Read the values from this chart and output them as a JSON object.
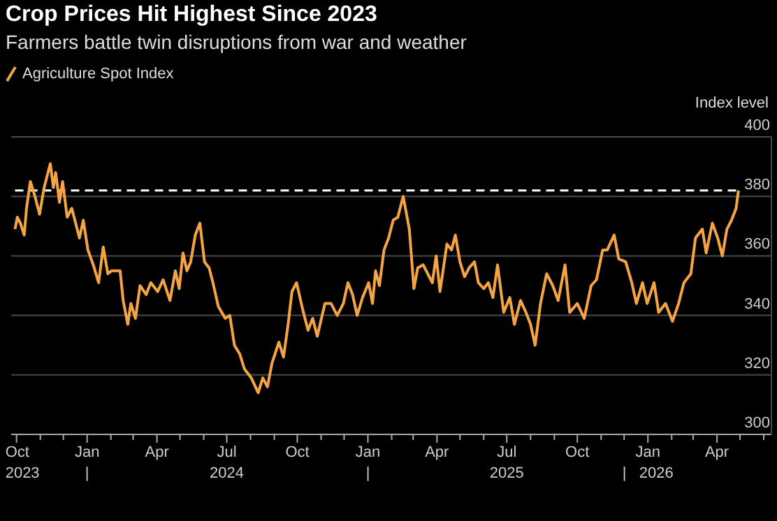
{
  "chart_data": {
    "type": "line",
    "title": "Crop Prices Hit Highest Since 2023",
    "subtitle": "Farmers battle twin disruptions from war and weather",
    "ylabel": "Index level",
    "x": [
      "2023-09-29",
      "2023-10-02",
      "2023-10-06",
      "2023-10-11",
      "2023-10-14",
      "2023-10-19",
      "2023-10-25",
      "2023-10-31",
      "2023-11-06",
      "2023-11-14",
      "2023-11-18",
      "2023-11-21",
      "2023-11-26",
      "2023-11-30",
      "2023-12-06",
      "2023-12-12",
      "2023-12-18",
      "2023-12-22",
      "2023-12-27",
      "2024-01-02",
      "2024-01-09",
      "2024-01-16",
      "2024-01-22",
      "2024-01-28",
      "2024-02-02",
      "2024-02-13",
      "2024-02-17",
      "2024-02-23",
      "2024-02-27",
      "2024-03-04",
      "2024-03-10",
      "2024-03-18",
      "2024-03-24",
      "2024-04-02",
      "2024-04-09",
      "2024-04-18",
      "2024-04-25",
      "2024-04-30",
      "2024-05-05",
      "2024-05-10",
      "2024-05-15",
      "2024-05-21",
      "2024-05-27",
      "2024-06-02",
      "2024-06-08",
      "2024-06-13",
      "2024-06-20",
      "2024-06-29",
      "2024-07-05",
      "2024-07-11",
      "2024-07-18",
      "2024-07-24",
      "2024-08-02",
      "2024-08-11",
      "2024-08-17",
      "2024-08-23",
      "2024-08-29",
      "2024-09-07",
      "2024-09-13",
      "2024-09-19",
      "2024-09-24",
      "2024-09-30",
      "2024-10-08",
      "2024-10-15",
      "2024-10-21",
      "2024-10-27",
      "2024-11-06",
      "2024-11-14",
      "2024-11-22",
      "2024-11-30",
      "2024-12-06",
      "2024-12-12",
      "2024-12-18",
      "2024-12-25",
      "2025-01-02",
      "2025-01-07",
      "2025-01-11",
      "2025-01-16",
      "2025-01-22",
      "2025-01-28",
      "2025-02-03",
      "2025-02-09",
      "2025-02-16",
      "2025-02-24",
      "2025-03-02",
      "2025-03-07",
      "2025-03-14",
      "2025-03-20",
      "2025-03-26",
      "2025-03-31",
      "2025-04-05",
      "2025-04-14",
      "2025-04-20",
      "2025-04-25",
      "2025-05-01",
      "2025-05-07",
      "2025-05-13",
      "2025-05-20",
      "2025-05-25",
      "2025-06-01",
      "2025-06-07",
      "2025-06-13",
      "2025-06-19",
      "2025-06-27",
      "2025-07-05",
      "2025-07-11",
      "2025-07-19",
      "2025-07-26",
      "2025-08-01",
      "2025-08-07",
      "2025-08-14",
      "2025-08-22",
      "2025-08-30",
      "2025-09-06",
      "2025-09-15",
      "2025-09-21",
      "2025-10-01",
      "2025-10-10",
      "2025-10-19",
      "2025-10-26",
      "2025-11-03",
      "2025-11-09",
      "2025-11-18",
      "2025-11-24",
      "2025-12-03",
      "2025-12-11",
      "2025-12-17",
      "2025-12-25",
      "2025-12-31",
      "2026-01-09",
      "2026-01-15",
      "2026-01-24",
      "2026-02-02",
      "2026-02-10",
      "2026-02-17",
      "2026-02-26",
      "2026-03-04",
      "2026-03-13",
      "2026-03-18",
      "2026-03-26",
      "2026-04-02",
      "2026-04-08",
      "2026-04-14",
      "2026-04-20",
      "2026-04-26",
      "2026-04-29"
    ],
    "series": [
      {
        "name": "Agriculture Spot Index",
        "color": "#f5a443",
        "values": [
          369,
          373,
          371,
          367,
          376,
          385,
          380,
          374,
          383,
          391,
          383,
          388,
          378,
          385,
          373,
          376,
          370,
          366,
          372,
          362,
          357,
          351,
          363,
          354,
          355,
          355,
          345,
          337,
          344,
          339,
          350,
          347,
          351,
          348,
          352,
          345,
          355,
          349,
          361,
          355,
          358,
          367,
          371,
          358,
          356,
          351,
          343,
          339,
          340,
          330,
          327,
          322,
          319,
          314,
          319,
          316,
          324,
          331,
          326,
          337,
          348,
          351,
          342,
          335,
          339,
          333,
          344,
          344,
          340,
          344,
          351,
          347,
          340,
          346,
          351,
          344,
          355,
          350,
          362,
          366,
          372,
          373,
          380,
          369,
          349,
          356,
          357,
          354,
          351,
          360,
          348,
          364,
          362,
          367,
          358,
          353,
          356,
          358,
          351,
          349,
          351,
          346,
          357,
          341,
          346,
          337,
          345,
          341,
          337,
          330,
          344,
          354,
          350,
          345,
          357,
          341,
          344,
          339,
          350,
          352,
          362,
          362,
          367,
          359,
          358,
          351,
          344,
          351,
          344,
          351,
          341,
          344,
          338,
          344,
          351,
          354,
          366,
          369,
          361,
          371,
          366,
          360,
          369,
          372,
          376,
          382
        ]
      }
    ],
    "xlim": [
      "2023-09-24",
      "2026-06-11"
    ],
    "xticks": [
      {
        "value": "2023-10-01",
        "label": "Oct\n2023"
      },
      {
        "value": "2023-11-01",
        "label": null
      },
      {
        "value": "2023-12-01",
        "label": null
      },
      {
        "value": "2024-01-01",
        "label": "Jan\n|"
      },
      {
        "value": "2024-02-01",
        "label": null
      },
      {
        "value": "2024-03-01",
        "label": null
      },
      {
        "value": "2024-04-01",
        "label": "Apr"
      },
      {
        "value": "2024-05-01",
        "label": null
      },
      {
        "value": "2024-06-01",
        "label": null
      },
      {
        "value": "2024-07-01",
        "label": "Jul\n2024"
      },
      {
        "value": "2024-08-01",
        "label": null
      },
      {
        "value": "2024-09-01",
        "label": null
      },
      {
        "value": "2024-10-01",
        "label": "Oct"
      },
      {
        "value": "2024-11-01",
        "label": null
      },
      {
        "value": "2024-12-01",
        "label": null
      },
      {
        "value": "2025-01-01",
        "label": "Jan\n|"
      },
      {
        "value": "2025-02-01",
        "label": null
      },
      {
        "value": "2025-03-01",
        "label": null
      },
      {
        "value": "2025-04-01",
        "label": "Apr"
      },
      {
        "value": "2025-05-01",
        "label": null
      },
      {
        "value": "2025-06-01",
        "label": null
      },
      {
        "value": "2025-07-01",
        "label": "Jul\n2025"
      },
      {
        "value": "2025-08-01",
        "label": null
      },
      {
        "value": "2025-09-01",
        "label": null
      },
      {
        "value": "2025-10-01",
        "label": "Oct"
      },
      {
        "value": "2025-11-01",
        "label": null
      },
      {
        "value": "2025-12-01",
        "label": null
      },
      {
        "value": "2026-01-01",
        "label": "Jan\n|   2026"
      },
      {
        "value": "2026-02-01",
        "label": null
      },
      {
        "value": "2026-03-01",
        "label": null
      },
      {
        "value": "2026-04-01",
        "label": "Apr"
      },
      {
        "value": "2026-05-01",
        "label": null
      },
      {
        "value": "2026-06-01",
        "label": null
      }
    ],
    "ylim": [
      300,
      400
    ],
    "yticks": [
      300,
      320,
      340,
      360,
      380,
      400
    ],
    "ref_lines": [
      {
        "axis": "y",
        "value": 382,
        "color": "#ffffff",
        "line_style": "dashed"
      }
    ],
    "grid": "y",
    "legend": "top left",
    "marker": "none",
    "line_style": "solid"
  }
}
